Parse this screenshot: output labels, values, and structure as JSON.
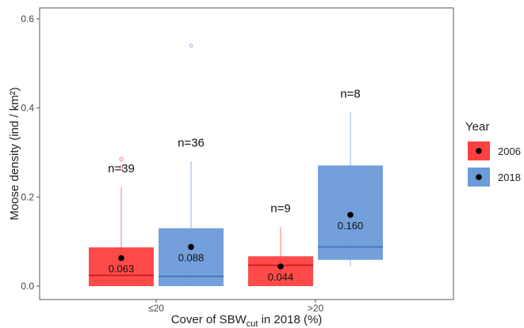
{
  "chart_data": {
    "type": "box",
    "xlabel_main": "Cover of SBW",
    "xlabel_sub": "cut",
    "xlabel_tail": " in 2018 (%)",
    "ylabel": "Moose density (ind / km²)",
    "ylim": [
      -0.03,
      0.63
    ],
    "yticks": [
      "0.0",
      "0.2",
      "0.4",
      "0.6"
    ],
    "categories": [
      "≤20",
      ">20"
    ],
    "legend": {
      "title": "Year",
      "position": "right",
      "items": [
        {
          "label": "2006",
          "color": "#ff4040"
        },
        {
          "label": "2018",
          "color": "#6b9bd8"
        }
      ]
    },
    "grid": false,
    "boxes": [
      {
        "category": "≤20",
        "series": "2006",
        "color": "#ff4040",
        "whisker_low": 0.0,
        "q1": 0.0,
        "median": 0.024,
        "q3": 0.087,
        "whisker_high": 0.222,
        "outliers": [
          0.265,
          0.285
        ],
        "mean": 0.063,
        "mean_label": "0.063",
        "n_label": "n=39"
      },
      {
        "category": "≤20",
        "series": "2018",
        "color": "#6b9bd8",
        "whisker_low": 0.0,
        "q1": 0.0,
        "median": 0.022,
        "q3": 0.13,
        "whisker_high": 0.28,
        "outliers": [
          0.54
        ],
        "mean": 0.088,
        "mean_label": "0.088",
        "n_label": "n=36"
      },
      {
        "category": ">20",
        "series": "2006",
        "color": "#ff4040",
        "whisker_low": 0.0,
        "q1": 0.0,
        "median": 0.047,
        "q3": 0.067,
        "whisker_high": 0.132,
        "outliers": [],
        "mean": 0.044,
        "mean_label": "0.044",
        "n_label": "n=9"
      },
      {
        "category": ">20",
        "series": "2018",
        "color": "#6b9bd8",
        "whisker_low": 0.045,
        "q1": 0.059,
        "median": 0.088,
        "q3": 0.271,
        "whisker_high": 0.39,
        "outliers": [],
        "mean": 0.16,
        "mean_label": "0.160",
        "n_label": "n=8"
      }
    ]
  }
}
